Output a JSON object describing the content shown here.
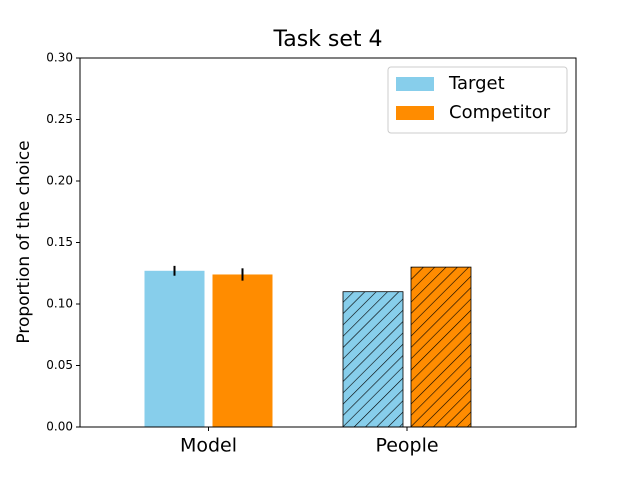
{
  "chart_data": {
    "type": "bar",
    "title": "Task set 4",
    "ylabel": "Proportion of the choice",
    "categories": [
      "Model",
      "People"
    ],
    "series": [
      {
        "name": "Target",
        "color": "#87ceeb",
        "values": [
          0.127,
          0.11
        ],
        "errors": [
          0.004,
          null
        ],
        "hatch": [
          false,
          true
        ]
      },
      {
        "name": "Competitor",
        "color": "#ff8c00",
        "values": [
          0.124,
          0.13
        ],
        "errors": [
          0.005,
          null
        ],
        "hatch": [
          false,
          true
        ]
      }
    ],
    "ylim": [
      0,
      0.3
    ],
    "yticks": [
      {
        "value": 0,
        "label": "0.00"
      },
      {
        "value": 0.05,
        "label": "0.05"
      },
      {
        "value": 0.1,
        "label": "0.10"
      },
      {
        "value": 0.15,
        "label": "0.15"
      },
      {
        "value": 0.2,
        "label": "0.20"
      },
      {
        "value": 0.25,
        "label": "0.25"
      },
      {
        "value": 0.3,
        "label": "0.30"
      }
    ],
    "legend": "upper right"
  }
}
